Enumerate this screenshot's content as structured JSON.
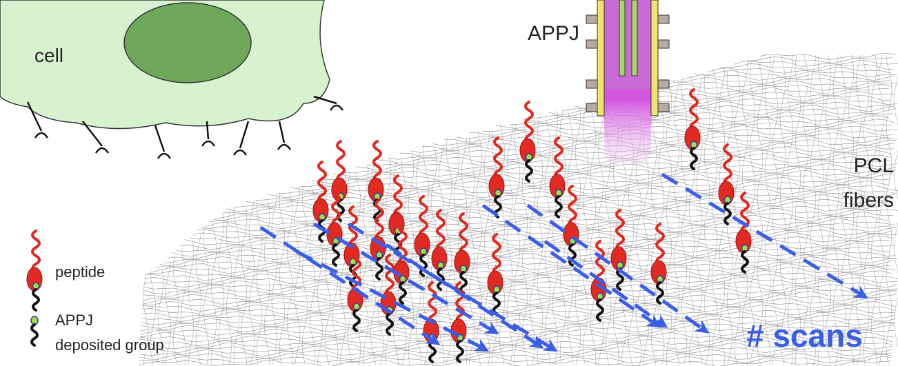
{
  "cell_label": "cell",
  "device_label": "APPJ",
  "substrate_label": [
    "PCL",
    "fibers"
  ],
  "legend": [
    {
      "label": [
        "peptide"
      ]
    },
    {
      "label": [
        "APPJ",
        "deposited group"
      ]
    }
  ],
  "scan_label": "# scans"
}
